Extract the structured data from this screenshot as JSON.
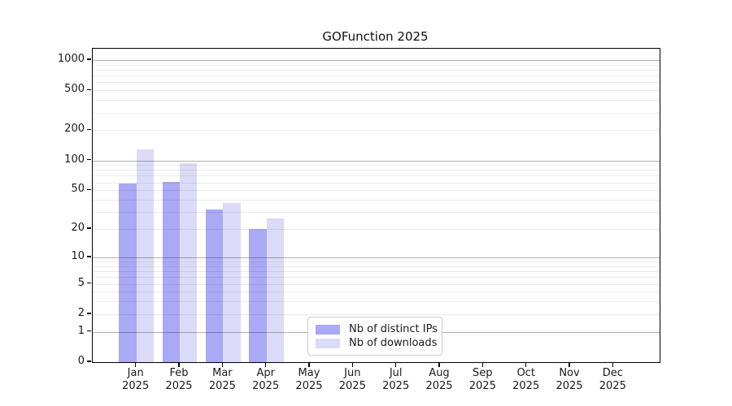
{
  "title": "GOFunction 2025",
  "colors": {
    "bar_distinct_ips": "#a9a9f6",
    "bar_downloads": "#dbdbf8",
    "grid_major": "#b2b2b2",
    "grid_minor": "#ebebeb",
    "frame": "#000000",
    "text": "#1a1a1a",
    "legend_border": "#cccccc",
    "background": "#ffffff"
  },
  "legend": {
    "items": [
      {
        "label": "Nb of distinct IPs",
        "color": "#a9a9f6"
      },
      {
        "label": "Nb of downloads",
        "color": "#dbdbf8"
      }
    ]
  },
  "chart_data": {
    "type": "bar",
    "title": "GOFunction 2025",
    "x_months": [
      "Jan",
      "Feb",
      "Mar",
      "Apr",
      "May",
      "Jun",
      "Jul",
      "Aug",
      "Sep",
      "Oct",
      "Nov",
      "Dec"
    ],
    "x_year": "2025",
    "series": [
      {
        "name": "Nb of distinct IPs",
        "color": "#a9a9f6",
        "values": [
          58,
          61,
          32,
          20,
          null,
          null,
          null,
          null,
          null,
          null,
          null,
          null
        ]
      },
      {
        "name": "Nb of downloads",
        "color": "#dbdbf8",
        "values": [
          129,
          93,
          37,
          26,
          null,
          null,
          null,
          null,
          null,
          null,
          null,
          null
        ]
      }
    ],
    "yscale": "log1p",
    "ylim": [
      0,
      1300
    ],
    "yticks": [
      0,
      1,
      2,
      5,
      10,
      20,
      50,
      100,
      200,
      500,
      1000
    ],
    "grid_major": [
      1,
      10,
      100,
      1000
    ],
    "grid_minor": [
      2,
      3,
      4,
      5,
      6,
      7,
      8,
      9,
      20,
      30,
      40,
      50,
      60,
      70,
      80,
      90,
      200,
      300,
      400,
      500,
      600,
      700,
      800,
      900
    ],
    "grid": "on",
    "legend_position": "lower center",
    "xlabel": "",
    "ylabel": ""
  }
}
